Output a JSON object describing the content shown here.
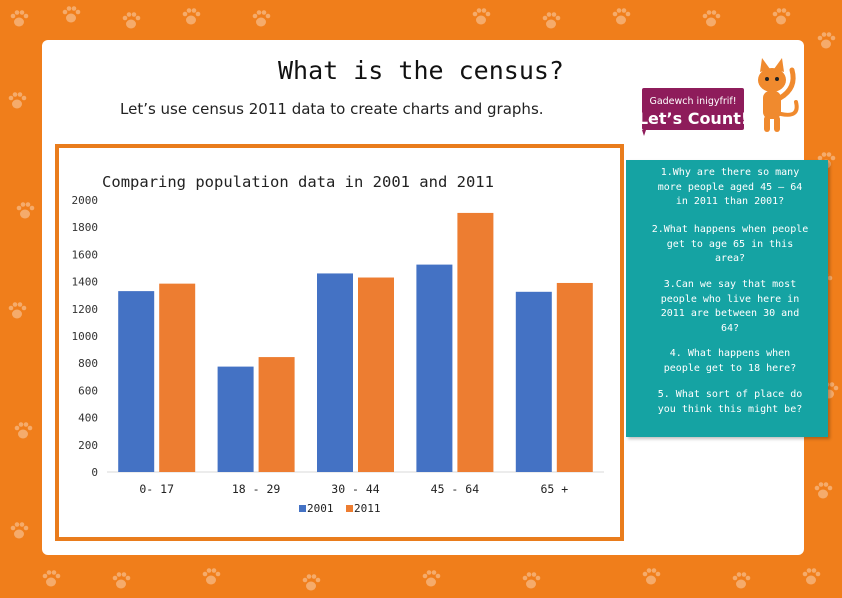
{
  "page": {
    "title": "What is the census?",
    "subtitle": "Let’s use census 2011 data to create charts and graphs."
  },
  "logo": {
    "line1": "Gadewch inigyfrif!",
    "line2": "Let’s Count!"
  },
  "questions": [
    "1.Why are there so many more people aged 45 – 64 in 2011 than 2001?",
    "2.What happens when people get to age 65 in this area?",
    "3.Can we say that most people who live here in 2011 are between 30 and 64?",
    "4. What happens when people get to 18 here?",
    "5. What sort of place do you think this might be?"
  ],
  "colors": {
    "background": "#f07e1b",
    "series2001": "#4472c4",
    "series2011": "#ed7d31",
    "panel": "#15a3a3"
  },
  "chart_data": {
    "type": "bar",
    "title": "Comparing population data in 2001 and 2011",
    "categories": [
      "0- 17",
      "18 - 29",
      "30 - 44",
      "45 - 64",
      "65 +"
    ],
    "series": [
      {
        "name": "2001",
        "values": [
          1330,
          775,
          1460,
          1525,
          1325
        ]
      },
      {
        "name": "2011",
        "values": [
          1385,
          845,
          1430,
          1905,
          1390
        ]
      }
    ],
    "yticks": [
      "0",
      "200",
      "400",
      "600",
      "800",
      "1000",
      "1200",
      "1400",
      "1600",
      "1800",
      "2000"
    ],
    "ylim": [
      0,
      2000
    ],
    "xlabel": "",
    "ylabel": "",
    "legend": "bottom",
    "grid": false
  }
}
